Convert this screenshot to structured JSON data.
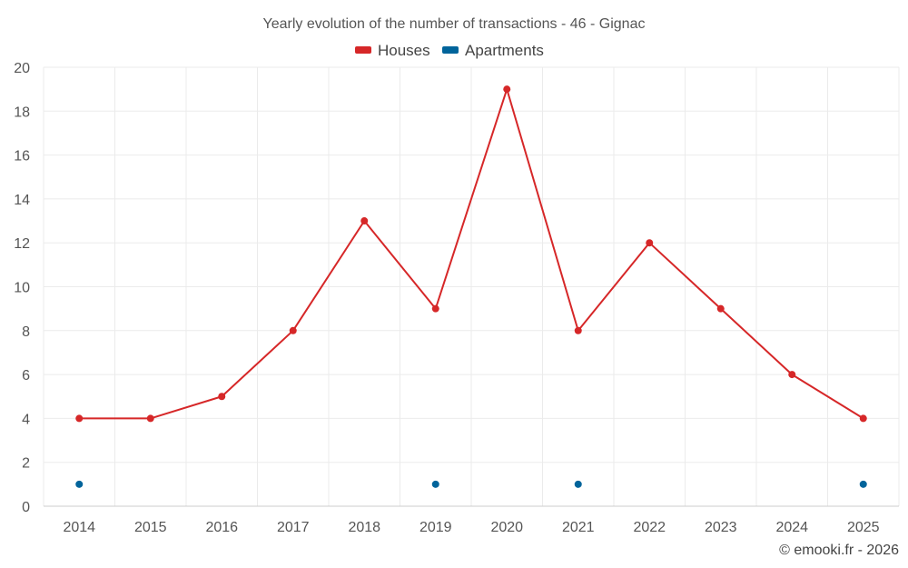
{
  "chart_data": {
    "type": "line",
    "title": "Yearly evolution of the number of transactions - 46 - Gignac",
    "categories": [
      "2014",
      "2015",
      "2016",
      "2017",
      "2018",
      "2019",
      "2020",
      "2021",
      "2022",
      "2023",
      "2024",
      "2025"
    ],
    "ylim": [
      0,
      20
    ],
    "yticks": [
      0,
      2,
      4,
      6,
      8,
      10,
      12,
      14,
      16,
      18,
      20
    ],
    "legend_position": "top-center",
    "series": [
      {
        "name": "Houses",
        "color": "#d62728",
        "values": [
          4,
          4,
          5,
          8,
          13,
          9,
          19,
          8,
          12,
          9,
          6,
          4
        ]
      },
      {
        "name": "Apartments",
        "color": "#00649b",
        "values": [
          1,
          null,
          null,
          null,
          null,
          1,
          null,
          1,
          null,
          null,
          null,
          1
        ]
      }
    ]
  },
  "credit": "© emooki.fr - 2026"
}
